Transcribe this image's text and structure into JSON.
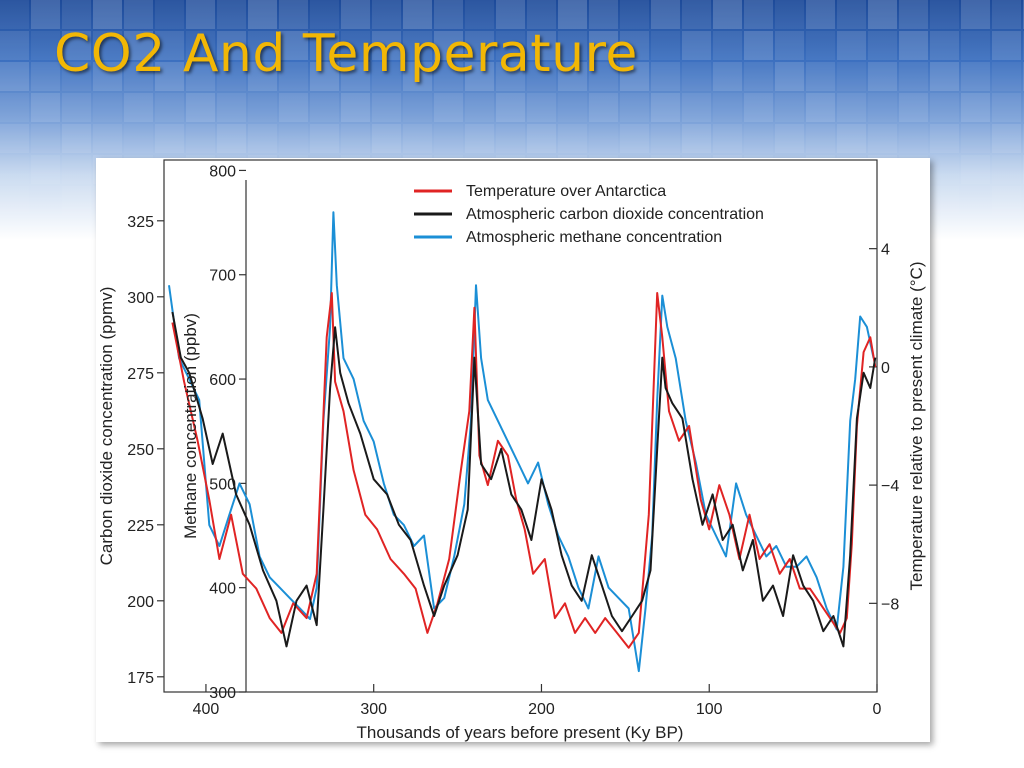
{
  "slide": {
    "title": "CO2 And Temperature"
  },
  "colors": {
    "title": "#f2b705",
    "temperature": "#e02424",
    "co2": "#1a1a1a",
    "methane": "#1b8fd6",
    "background_top": "#1d4a99"
  },
  "chart_data": {
    "type": "line",
    "xlabel": "Thousands of years before present (Ky BP)",
    "xlim": [
      425,
      0
    ],
    "x_ticks": [
      400,
      300,
      200,
      100,
      0
    ],
    "axes": {
      "co2": {
        "label": "Carbon dioxide concentration (ppmv)",
        "ylim": [
          170,
          345
        ],
        "ticks": [
          175,
          200,
          225,
          250,
          275,
          300,
          325
        ]
      },
      "methane": {
        "label": "Methane concentration (ppbv)",
        "ylim": [
          300,
          810
        ],
        "ticks": [
          300,
          400,
          500,
          600,
          700,
          800
        ]
      },
      "temperature": {
        "label": "Temperature relative to present climate (°C)",
        "ylim": [
          -11,
          7
        ],
        "ticks": [
          4,
          0,
          -4,
          -8
        ],
        "tick_labels": [
          "4",
          "0",
          "−4",
          "−8"
        ]
      }
    },
    "legend": {
      "placement": "top-center"
    },
    "series": [
      {
        "name": "Temperature over Antarctica",
        "axis": "temperature",
        "color": "#e02424",
        "x": [
          420,
          413,
          405,
          398,
          392,
          385,
          378,
          370,
          362,
          355,
          348,
          340,
          334,
          328,
          325,
          323,
          318,
          312,
          305,
          298,
          290,
          282,
          275,
          268,
          262,
          255,
          248,
          243,
          240,
          237,
          232,
          226,
          220,
          215,
          210,
          205,
          198,
          192,
          186,
          180,
          174,
          168,
          162,
          155,
          148,
          142,
          136,
          131,
          128,
          124,
          118,
          112,
          105,
          100,
          94,
          88,
          82,
          76,
          70,
          64,
          58,
          52,
          46,
          40,
          34,
          28,
          22,
          18,
          15,
          12,
          8,
          4,
          1
        ],
        "y": [
          1.5,
          -0.5,
          -2.5,
          -4.5,
          -6.5,
          -5,
          -7,
          -7.5,
          -8.5,
          -9,
          -8,
          -8.5,
          -7,
          1,
          2.5,
          -0.5,
          -1.5,
          -3.5,
          -5,
          -5.5,
          -6.5,
          -7,
          -7.5,
          -9,
          -8,
          -6.5,
          -3.5,
          -1.5,
          2,
          -3,
          -4,
          -2.5,
          -3,
          -4.5,
          -5.5,
          -7,
          -6.5,
          -8.5,
          -8,
          -9,
          -8.5,
          -9,
          -8.5,
          -9,
          -9.5,
          -9,
          -5,
          2.5,
          1,
          -1.5,
          -2.5,
          -2,
          -4.5,
          -5.5,
          -4,
          -5,
          -6.5,
          -5,
          -6.5,
          -6,
          -7,
          -6.5,
          -7.5,
          -7.5,
          -8,
          -8.5,
          -9,
          -8.5,
          -6,
          -2,
          0.5,
          1,
          0
        ]
      },
      {
        "name": "Atmospheric carbon dioxide concentration",
        "axis": "co2",
        "color": "#1a1a1a",
        "x": [
          420,
          415,
          410,
          402,
          396,
          390,
          382,
          374,
          366,
          358,
          352,
          346,
          340,
          334,
          330,
          326,
          323,
          320,
          315,
          308,
          300,
          292,
          285,
          278,
          270,
          264,
          258,
          250,
          244,
          240,
          236,
          230,
          224,
          218,
          212,
          206,
          200,
          194,
          188,
          182,
          176,
          170,
          164,
          158,
          152,
          146,
          140,
          135,
          131,
          128,
          126,
          122,
          116,
          110,
          104,
          98,
          92,
          86,
          80,
          74,
          68,
          62,
          56,
          50,
          44,
          38,
          32,
          26,
          20,
          16,
          12,
          8,
          4,
          1
        ],
        "y": [
          295,
          280,
          275,
          260,
          245,
          255,
          235,
          225,
          210,
          200,
          185,
          200,
          205,
          192,
          230,
          270,
          290,
          275,
          265,
          255,
          240,
          235,
          225,
          220,
          205,
          195,
          205,
          215,
          230,
          280,
          245,
          240,
          250,
          235,
          230,
          220,
          240,
          230,
          215,
          205,
          200,
          215,
          205,
          195,
          190,
          195,
          200,
          210,
          250,
          280,
          270,
          265,
          260,
          240,
          225,
          235,
          220,
          225,
          210,
          220,
          200,
          205,
          195,
          215,
          205,
          200,
          190,
          195,
          185,
          215,
          260,
          275,
          270,
          280
        ]
      },
      {
        "name": "Atmospheric methane concentration",
        "axis": "methane",
        "color": "#1b8fd6",
        "x": [
          422,
          416,
          410,
          404,
          398,
          392,
          386,
          380,
          374,
          368,
          362,
          356,
          350,
          344,
          338,
          334,
          330,
          326,
          324,
          322,
          318,
          312,
          306,
          300,
          294,
          288,
          282,
          276,
          270,
          264,
          258,
          252,
          246,
          242,
          239,
          236,
          232,
          226,
          220,
          214,
          208,
          202,
          196,
          190,
          184,
          178,
          172,
          166,
          160,
          154,
          148,
          142,
          138,
          134,
          131,
          128,
          125,
          120,
          114,
          108,
          102,
          96,
          90,
          84,
          78,
          72,
          66,
          60,
          54,
          48,
          42,
          36,
          30,
          24,
          20,
          16,
          13,
          10,
          6,
          2
        ],
        "y": [
          690,
          620,
          600,
          580,
          460,
          440,
          470,
          500,
          480,
          430,
          410,
          400,
          390,
          380,
          370,
          400,
          560,
          650,
          760,
          690,
          620,
          600,
          560,
          540,
          500,
          470,
          460,
          440,
          450,
          380,
          390,
          430,
          480,
          560,
          690,
          620,
          580,
          560,
          540,
          520,
          500,
          520,
          480,
          450,
          430,
          400,
          380,
          430,
          400,
          390,
          380,
          320,
          380,
          450,
          580,
          680,
          650,
          620,
          560,
          520,
          470,
          450,
          430,
          500,
          470,
          450,
          430,
          440,
          420,
          420,
          430,
          410,
          380,
          360,
          420,
          560,
          600,
          660,
          650,
          620
        ]
      }
    ]
  }
}
